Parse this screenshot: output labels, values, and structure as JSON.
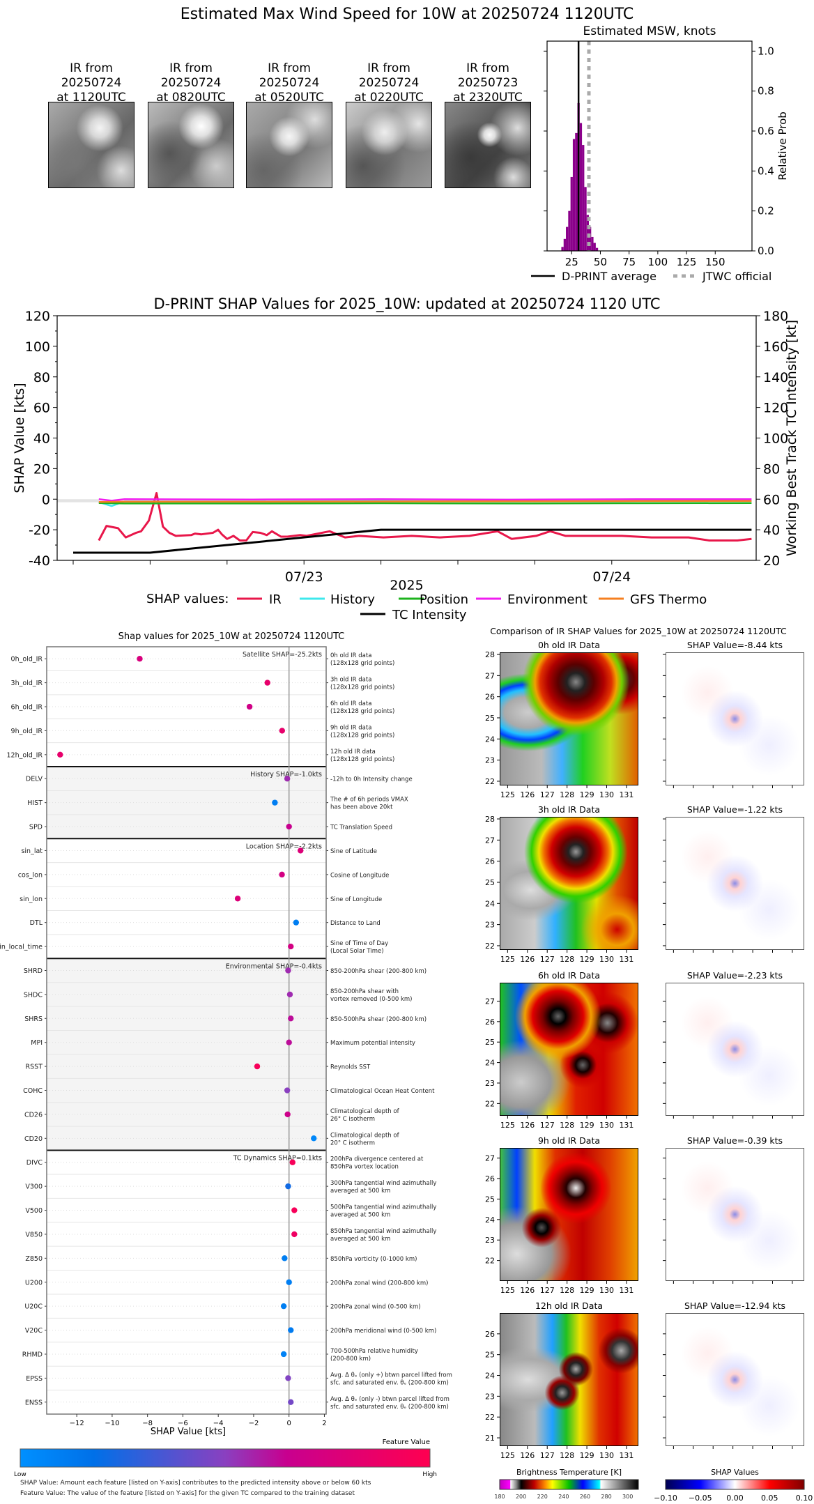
{
  "main_title": "Estimated Max Wind Speed for 10W at 20250724 1120UTC",
  "thumbnails": [
    {
      "line1": "IR from",
      "line2": "20250724",
      "line3": "at 1120UTC"
    },
    {
      "line1": "IR from",
      "line2": "20250724",
      "line3": "at 0820UTC"
    },
    {
      "line1": "IR from",
      "line2": "20250724",
      "line3": "at 0520UTC"
    },
    {
      "line1": "IR from",
      "line2": "20250724",
      "line3": "at 0220UTC"
    },
    {
      "line1": "IR from",
      "line2": "20250723",
      "line3": "at 2320UTC"
    }
  ],
  "colors": {
    "hist": "#8b008b",
    "ir": "#e8174a",
    "history": "#3de8ec",
    "position": "#1db31d",
    "environment": "#f01cf0",
    "gfs": "#f57f20",
    "tc": "#000000",
    "jtwc": "#aaaaaa"
  },
  "chart_data": [
    {
      "type": "bar",
      "title": "Estimated MSW, knots",
      "ylabel": "Relative Prob",
      "xlim": [
        3.6,
        182
      ],
      "ylim": [
        0,
        1.05
      ],
      "xticks": [
        25,
        50,
        75,
        100,
        125,
        150
      ],
      "yticks": [
        "0.0",
        "0.2",
        "0.4",
        "0.6",
        "0.8",
        "1.0"
      ],
      "bin_centers": [
        17,
        19,
        21,
        23,
        25,
        27,
        29,
        31,
        33,
        35,
        37,
        39,
        41,
        43,
        45,
        47
      ],
      "values": [
        0.02,
        0.06,
        0.12,
        0.2,
        0.37,
        0.56,
        0.59,
        0.74,
        0.64,
        0.53,
        0.32,
        0.18,
        0.12,
        0.07,
        0.04,
        0.015
      ],
      "dprint_average": 31,
      "jtwc_official": 40,
      "legend": [
        "D-PRINT average",
        "JTWC official"
      ],
      "legend_placement": "bottom"
    },
    {
      "type": "line",
      "title": "D-PRINT SHAP Values for 2025_10W: updated at 20250724 1120 UTC",
      "xlabel": "2025",
      "ylabel": "SHAP Value [kts]",
      "ylabel_right": "Working Best Track TC Intensity [kt]",
      "x_units": "hours since 07/22 00UTC",
      "xlim": [
        4.75,
        59.3
      ],
      "ylim": [
        -40,
        120
      ],
      "ylim_right": [
        20,
        180
      ],
      "yticks": [
        -40,
        -20,
        0,
        20,
        40,
        60,
        80,
        100,
        120
      ],
      "yticks_right": [
        20,
        40,
        60,
        80,
        100,
        120,
        140,
        160,
        180
      ],
      "xtick_labels": [
        {
          "t": 24,
          "label": "07/23"
        },
        {
          "t": 48,
          "label": "07/24"
        }
      ],
      "legend_title": "SHAP values:",
      "series": [
        {
          "name": "IR",
          "key": "ir",
          "x": [
            8,
            8.6,
            9.5,
            10.1,
            10.9,
            11.3,
            11.9,
            12.5,
            13,
            13.5,
            14,
            15.2,
            15.5,
            16,
            16.9,
            17.3,
            17.6,
            18,
            18.5,
            19,
            19.5,
            20,
            20.6,
            21.1,
            21.5,
            22.2,
            22.7,
            23.7,
            24.2,
            26,
            27.2,
            28.3,
            30.2,
            32.4,
            34.6,
            36.9,
            39.1,
            40.2,
            42.1,
            43.2,
            44.4,
            46.6,
            48.8,
            51.1,
            52.6,
            54,
            55.6,
            57.8,
            58.9
          ],
          "y": [
            -27,
            -17.5,
            -19,
            -25,
            -22,
            -21,
            -14,
            4,
            -18,
            -22,
            -24,
            -23.5,
            -22.5,
            -23,
            -22,
            -20,
            -23,
            -26,
            -24,
            -27,
            -27,
            -21.5,
            -22,
            -23.5,
            -21,
            -24.5,
            -24.5,
            -23.5,
            -24,
            -21,
            -25,
            -24,
            -25,
            -24,
            -25,
            -24,
            -21,
            -26,
            -24,
            -21,
            -24,
            -24,
            -24,
            -25,
            -25,
            -25,
            -27,
            -27,
            -26
          ]
        },
        {
          "name": "History",
          "key": "history",
          "x": [
            8,
            9,
            10,
            20,
            30,
            40,
            50,
            58.9
          ],
          "y": [
            -2,
            -4.5,
            -1.5,
            -1.5,
            -1.2,
            -1.5,
            -1.2,
            -1
          ]
        },
        {
          "name": "Position",
          "key": "position",
          "x": [
            8,
            10,
            20,
            30,
            40,
            50,
            58.9
          ],
          "y": [
            -2.5,
            -2.8,
            -2.8,
            -2.6,
            -2.8,
            -2.6,
            -2.5
          ]
        },
        {
          "name": "Environment",
          "key": "environment",
          "x": [
            8,
            9,
            10,
            20,
            30,
            40,
            50,
            58.9
          ],
          "y": [
            0,
            -1,
            0,
            -0.2,
            0,
            -0.3,
            0,
            0
          ]
        },
        {
          "name": "GFS Thermo",
          "key": "gfs",
          "x": [
            8,
            10,
            20,
            30,
            40,
            50,
            58.9
          ],
          "y": [
            -1.8,
            -1.6,
            -1.6,
            -1.5,
            -1.4,
            -1.2,
            -1.1
          ]
        },
        {
          "name": "TC Intensity",
          "key": "tc",
          "axis": "right",
          "x": [
            6,
            12,
            30,
            58.9
          ],
          "y": [
            25,
            25,
            40,
            40
          ]
        }
      ]
    },
    {
      "type": "scatter",
      "title": "Shap values for 2025_10W at 20250724 1120UTC",
      "xlabel": "SHAP Value [kts]",
      "xlim": [
        -13.7,
        2.1
      ],
      "xticks": [
        "−12",
        "−10",
        "−8",
        "−6",
        "−4",
        "−2",
        "0",
        "2"
      ],
      "xtick_values": [
        -12,
        -10,
        -8,
        -6,
        -4,
        -2,
        0,
        2
      ],
      "colorbar": {
        "label": "Feature Value",
        "low": "Low",
        "high": "High"
      },
      "groups": [
        {
          "label": "Satellite SHAP=-25.2kts",
          "shaded": false,
          "features": [
            {
              "name": "0h_old_IR",
              "shap": -8.44,
              "fv": 0.75,
              "desc": [
                "0h old IR data",
                "(128x128 grid points)"
              ]
            },
            {
              "name": "3h_old_IR",
              "shap": -1.22,
              "fv": 0.85,
              "desc": [
                "3h old IR data",
                "(128x128 grid points)"
              ]
            },
            {
              "name": "6h_old_IR",
              "shap": -2.23,
              "fv": 0.7,
              "desc": [
                "6h old IR data",
                "(128x128 grid points)"
              ]
            },
            {
              "name": "9h_old_IR",
              "shap": -0.39,
              "fv": 0.85,
              "desc": [
                "9h old IR data",
                "(128x128 grid points)"
              ]
            },
            {
              "name": "12h_old_IR",
              "shap": -12.94,
              "fv": 0.85,
              "desc": [
                "12h old IR data",
                "(128x128 grid points)"
              ]
            }
          ]
        },
        {
          "label": "History SHAP=-1.0kts",
          "shaded": true,
          "features": [
            {
              "name": "DELV",
              "shap": -0.1,
              "fv": 0.55,
              "desc": [
                "-12h to 0h Intensity change"
              ]
            },
            {
              "name": "HIST",
              "shap": -0.8,
              "fv": 0.1,
              "desc": [
                "The # of 6h periods VMAX",
                "has been above 20kt"
              ]
            },
            {
              "name": "SPD",
              "shap": 0.0,
              "fv": 0.65,
              "desc": [
                "TC Translation Speed"
              ]
            }
          ]
        },
        {
          "label": "Location SHAP=-2.2kts",
          "shaded": false,
          "features": [
            {
              "name": "sin_lat",
              "shap": 0.65,
              "fv": 0.78,
              "desc": [
                "Sine of Latitude"
              ]
            },
            {
              "name": "cos_lon",
              "shap": -0.4,
              "fv": 0.72,
              "desc": [
                "Cosine of Longitude"
              ]
            },
            {
              "name": "sin_lon",
              "shap": -2.9,
              "fv": 0.78,
              "desc": [
                "Sine of Longitude"
              ]
            },
            {
              "name": "DTL",
              "shap": 0.4,
              "fv": 0.1,
              "desc": [
                "Distance to Land"
              ]
            },
            {
              "name": "sin_local_time",
              "shap": 0.1,
              "fv": 0.72,
              "desc": [
                "Sine of Time of Day",
                "(Local Solar Time)"
              ]
            }
          ]
        },
        {
          "label": "Environmental SHAP=-0.4kts",
          "shaded": true,
          "features": [
            {
              "name": "SHRD",
              "shap": -0.05,
              "fv": 0.55,
              "desc": [
                "850-200hPa shear (200-800 km)"
              ]
            },
            {
              "name": "SHDC",
              "shap": 0.05,
              "fv": 0.55,
              "desc": [
                "850-200hPa shear with",
                "vortex removed (0-500 km)"
              ]
            },
            {
              "name": "SHRS",
              "shap": 0.1,
              "fv": 0.62,
              "desc": [
                "850-500hPa shear (200-800 km)"
              ]
            },
            {
              "name": "MPI",
              "shap": 0.0,
              "fv": 0.62,
              "desc": [
                "Maximum potential intensity"
              ]
            },
            {
              "name": "RSST",
              "shap": -1.8,
              "fv": 0.95,
              "desc": [
                "Reynolds SST"
              ]
            },
            {
              "name": "COHC",
              "shap": -0.1,
              "fv": 0.5,
              "desc": [
                "Climatological Ocean Heat Content"
              ]
            },
            {
              "name": "CD26",
              "shap": -0.08,
              "fv": 0.68,
              "desc": [
                "Climatological depth of",
                "26° C isotherm"
              ]
            },
            {
              "name": "CD20",
              "shap": 1.4,
              "fv": 0.05,
              "desc": [
                "Climatological depth of",
                "20° C isotherm"
              ]
            }
          ]
        },
        {
          "label": "TC Dynamics SHAP=0.1kts",
          "shaded": false,
          "features": [
            {
              "name": "DIVC",
              "shap": 0.2,
              "fv": 0.95,
              "desc": [
                "200hPa divergence centered at",
                "850hPa vortex location"
              ]
            },
            {
              "name": "V300",
              "shap": -0.05,
              "fv": 0.22,
              "desc": [
                "300hPa tangential wind azimuthally",
                "averaged at 500 km"
              ]
            },
            {
              "name": "V500",
              "shap": 0.3,
              "fv": 0.95,
              "desc": [
                "500hPa tangential wind azimuthally",
                "averaged at 500 km"
              ]
            },
            {
              "name": "V850",
              "shap": 0.3,
              "fv": 0.9,
              "desc": [
                "850hPa tangential wind azimuthally",
                "averaged at 500 km"
              ]
            },
            {
              "name": "Z850",
              "shap": -0.25,
              "fv": 0.1,
              "desc": [
                "850hPa vorticity (0-1000 km)"
              ]
            },
            {
              "name": "U200",
              "shap": 0.0,
              "fv": 0.1,
              "desc": [
                "200hPa zonal wind (200-800 km)"
              ]
            },
            {
              "name": "U20C",
              "shap": -0.3,
              "fv": 0.1,
              "desc": [
                "200hPa zonal wind (0-500 km)"
              ]
            },
            {
              "name": "V20C",
              "shap": 0.1,
              "fv": 0.12,
              "desc": [
                "200hPa meridional wind (0-500 km)"
              ]
            },
            {
              "name": "RHMD",
              "shap": -0.3,
              "fv": 0.08,
              "desc": [
                "700-500hPa relative humidity",
                "(200-800 km)"
              ]
            },
            {
              "name": "EPSS",
              "shap": -0.05,
              "fv": 0.48,
              "desc": [
                "Avg. Δ θₑ (only +) btwn parcel lifted from",
                "sfc. and saturated env. θₑ (200-800 km)"
              ]
            },
            {
              "name": "ENSS",
              "shap": 0.1,
              "fv": 0.45,
              "desc": [
                "Avg. Δ θₑ (only -) btwn parcel lifted from",
                "sfc. and saturated env. θₑ (200-800 km)"
              ]
            }
          ]
        }
      ],
      "footnotes": [
        "SHAP Value: Amount each feature [listed on Y-axis] contributes to the predicted intensity above or below 60 kts",
        "Feature Value: The value of the feature [listed on Y-axis] for the given TC compared to the training dataset"
      ]
    }
  ],
  "comparison": {
    "title": "Comparison of IR SHAP Values for 2025_10W at 20250724 1120UTC",
    "lon_ticks": [
      "125",
      "126",
      "127",
      "128",
      "129",
      "130",
      "131"
    ],
    "lon_range": [
      124.6,
      131.6
    ],
    "rows": [
      {
        "ir_title": "0h old IR Data",
        "shap_title": "SHAP Value=-8.44 kts",
        "lat_range": [
          21.8,
          28.1
        ],
        "lat_ticks": [
          "22",
          "23",
          "24",
          "25",
          "26",
          "27",
          "28"
        ]
      },
      {
        "ir_title": "3h old IR Data",
        "shap_title": "SHAP Value=-1.22 kts",
        "lat_range": [
          21.8,
          28.1
        ],
        "lat_ticks": [
          "22",
          "23",
          "24",
          "25",
          "26",
          "27",
          "28"
        ]
      },
      {
        "ir_title": "6h old IR Data",
        "shap_title": "SHAP Value=-2.23 kts",
        "lat_range": [
          21.4,
          27.9
        ],
        "lat_ticks": [
          "22",
          "23",
          "24",
          "25",
          "26",
          "27"
        ]
      },
      {
        "ir_title": "9h old IR Data",
        "shap_title": "SHAP Value=-0.39 kts",
        "lat_range": [
          21.0,
          27.5
        ],
        "lat_ticks": [
          "22",
          "23",
          "24",
          "25",
          "26",
          "27"
        ]
      },
      {
        "ir_title": "12h old IR Data",
        "shap_title": "SHAP Value=-12.94 kts",
        "lat_range": [
          20.6,
          27.0
        ],
        "lat_ticks": [
          "21",
          "22",
          "23",
          "24",
          "25",
          "26"
        ]
      }
    ],
    "bt_colorbar": {
      "label": "Brightness Temperature [K]",
      "ticks": [
        "180",
        "200",
        "220",
        "240",
        "260",
        "280",
        "300"
      ],
      "range": [
        180,
        310
      ]
    },
    "shap_colorbar": {
      "label": "SHAP Values",
      "ticks": [
        "−0.10",
        "−0.05",
        "0.00",
        "0.05",
        "0.10"
      ]
    }
  }
}
